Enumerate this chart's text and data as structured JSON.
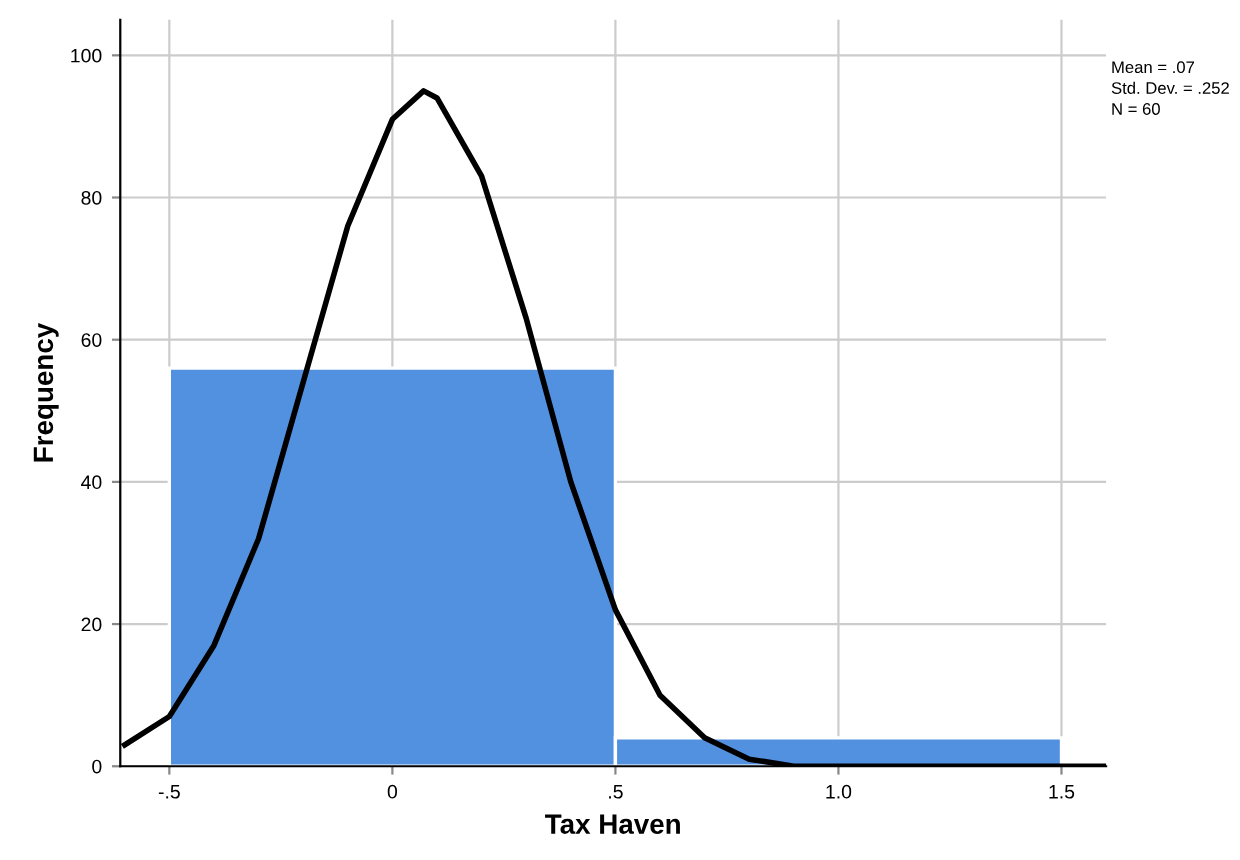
{
  "chart_data": {
    "type": "histogram",
    "xlabel": "Tax Haven",
    "ylabel": "Frequency",
    "bins": [
      -0.5,
      0.5,
      1.5
    ],
    "values": [
      56,
      4
    ],
    "color": "#5290e0",
    "series": [
      {
        "type": "line",
        "color": "#000000",
        "x": [
          -0.6,
          -0.5,
          -0.4,
          -0.3,
          -0.2,
          -0.1,
          0,
          0.07,
          0.1,
          0.2,
          0.3,
          0.4,
          0.5,
          0.6,
          0.7,
          0.8,
          0.9,
          1.0,
          1.2,
          1.6
        ],
        "values": [
          3,
          7,
          17,
          32,
          54,
          76,
          91,
          95,
          94,
          83,
          63,
          40,
          22,
          10,
          4,
          1,
          0,
          0,
          0,
          0
        ]
      }
    ],
    "xlim": [
      -0.61,
      1.6
    ],
    "ylim": [
      0,
      105
    ],
    "xticks": [
      {
        "value": -0.5,
        "label": "-.5"
      },
      0,
      {
        "value": 0.5,
        "label": ".5"
      },
      {
        "value": 1.0,
        "label": "1.0"
      },
      {
        "value": 1.5,
        "label": "1.5"
      }
    ],
    "yticks": [
      0,
      20,
      40,
      60,
      80,
      100
    ],
    "grid": true,
    "annotations": [
      "Mean = .07",
      "Std. Dev. = .252",
      "N = 60"
    ]
  }
}
